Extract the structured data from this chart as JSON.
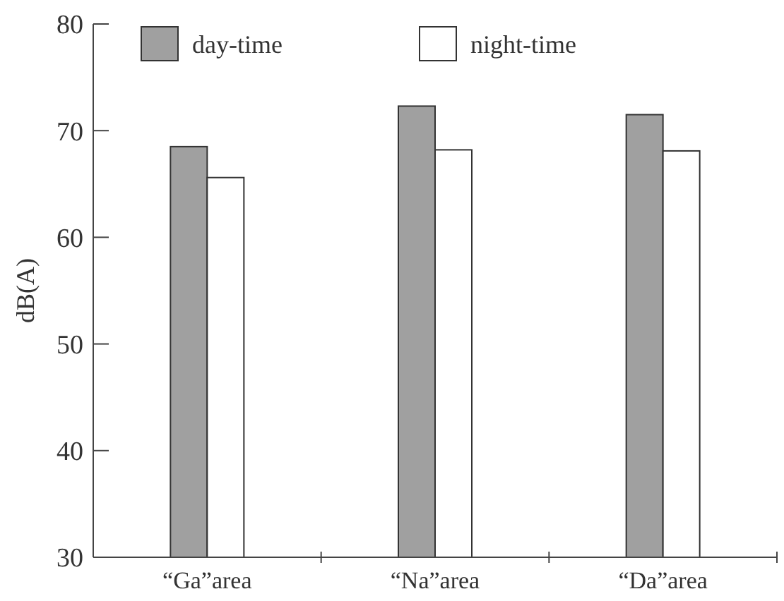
{
  "chart_data": {
    "type": "bar",
    "ylabel": "dB(A)",
    "categories": [
      "“Ga”area",
      "“Na”area",
      "“Da”area"
    ],
    "series": [
      {
        "name": "day-time",
        "color": "#a0a0a0",
        "values": [
          68.5,
          72.3,
          71.5
        ]
      },
      {
        "name": "night-time",
        "color": "#ffffff",
        "values": [
          65.6,
          68.2,
          68.1
        ]
      }
    ],
    "ylim": [
      30,
      80
    ],
    "yticks": [
      30,
      40,
      50,
      60,
      70,
      80
    ],
    "grid": false,
    "legend": "top"
  }
}
